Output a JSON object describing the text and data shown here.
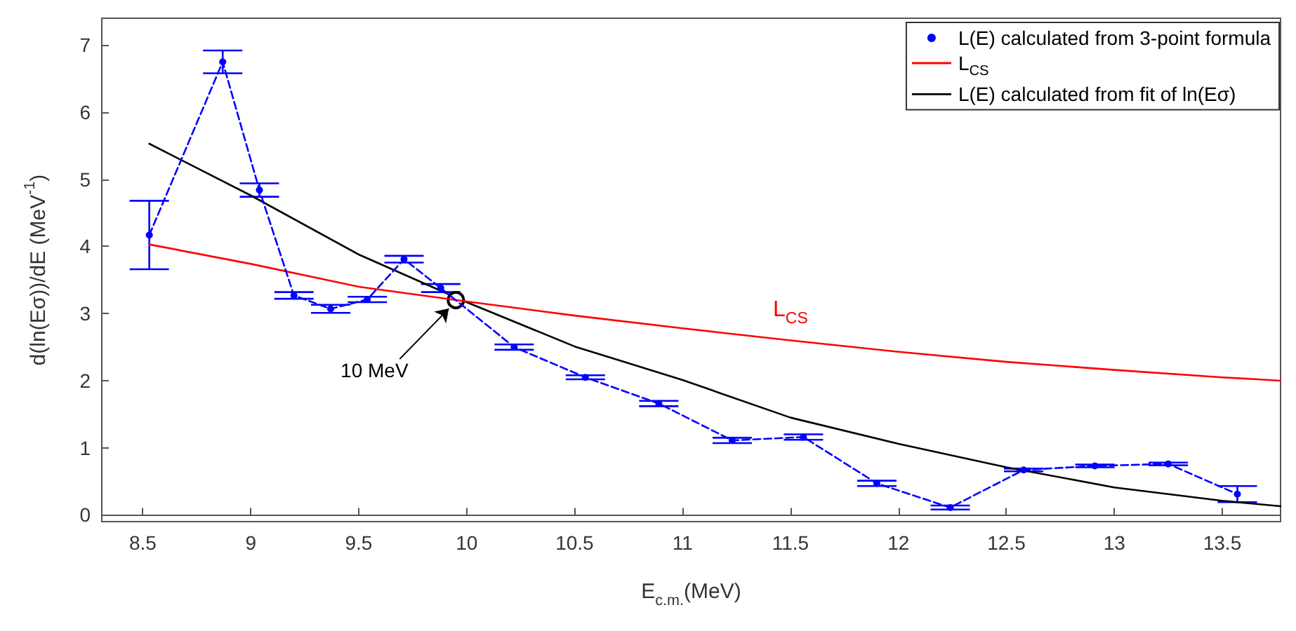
{
  "chart_data": {
    "type": "line",
    "xlabel": "E$_{c.m.}$(MeV)",
    "ylabel": "d(ln(Eσ))/dE (MeV$^{-1}$)",
    "xlim": [
      8.31,
      13.77
    ],
    "xticks": [
      8.5,
      9,
      9.5,
      10,
      10.5,
      11,
      11.5,
      12,
      12.5,
      13,
      13.5
    ],
    "ylim": [
      -0.1,
      7.4
    ],
    "yticks": [
      0,
      1,
      2,
      3,
      4,
      5,
      6,
      7
    ],
    "legend": "top right",
    "annotations": [
      {
        "text": "10 MeV",
        "x": 9.95,
        "y": 3.2
      }
    ],
    "series": [
      {
        "name": "L(E) calculated from 3-point formula",
        "type": "line",
        "color": "#0000ff",
        "marker": "circle",
        "line_style": "dashed",
        "x": [
          8.53,
          8.87,
          9.04,
          9.2,
          9.37,
          9.54,
          9.71,
          9.88,
          10.22,
          10.55,
          10.89,
          11.23,
          11.56,
          11.9,
          12.24,
          12.58,
          12.91,
          13.25,
          13.57
        ],
        "values": [
          4.17,
          6.75,
          4.84,
          3.27,
          3.07,
          3.21,
          3.81,
          3.38,
          2.5,
          2.05,
          1.66,
          1.11,
          1.16,
          0.47,
          0.11,
          0.67,
          0.73,
          0.76,
          0.31
        ],
        "errors": [
          0.51,
          0.17,
          0.1,
          0.05,
          0.06,
          0.04,
          0.05,
          0.06,
          0.04,
          0.03,
          0.04,
          0.04,
          0.04,
          0.04,
          0.03,
          0.02,
          0.02,
          0.02,
          0.12
        ]
      },
      {
        "name": "L$_{CS}$",
        "type": "line",
        "color": "#ff0000",
        "marker": "none",
        "line_style": "solid",
        "x": [
          8.53,
          9,
          9.5,
          10,
          10.5,
          11,
          11.5,
          12,
          12.5,
          13,
          13.5,
          13.77
        ],
        "values": [
          4.03,
          3.74,
          3.4,
          3.18,
          2.97,
          2.78,
          2.6,
          2.43,
          2.28,
          2.16,
          2.05,
          2.0
        ]
      },
      {
        "name": "L(E) calculated from fit of ln(Eσ)",
        "type": "line",
        "color": "#000000",
        "marker": "none",
        "line_style": "solid",
        "x": [
          8.53,
          9,
          9.5,
          10,
          10.5,
          11,
          11.5,
          12,
          12.5,
          13,
          13.5,
          13.77
        ],
        "values": [
          5.53,
          4.76,
          3.88,
          3.17,
          2.51,
          2.01,
          1.45,
          1.06,
          0.71,
          0.41,
          0.21,
          0.13
        ]
      }
    ]
  }
}
